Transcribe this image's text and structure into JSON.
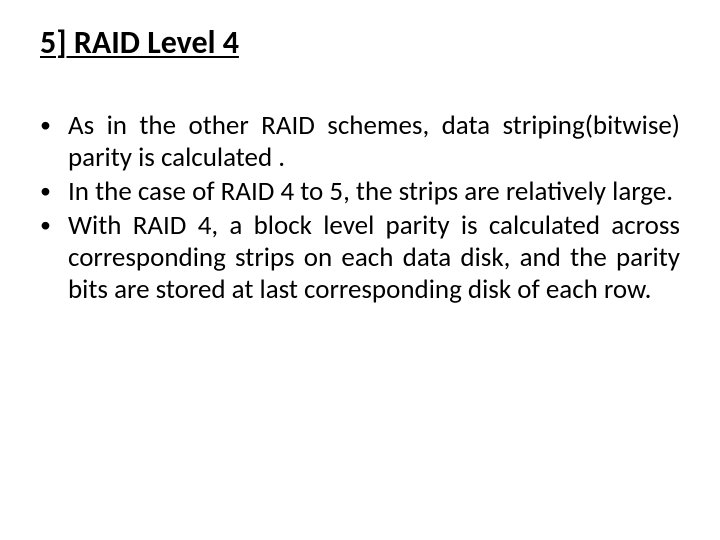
{
  "slide": {
    "title": "5] RAID Level 4",
    "bullet_marker": "•",
    "bullets": [
      "As in the other RAID schemes, data striping(bitwise) parity is calculated .",
      "In the case of RAID 4 to 5, the strips are relatively large.",
      "With RAID 4, a block level parity is calculated across corresponding strips on each data disk, and the parity bits are stored at last corresponding disk of each row."
    ]
  },
  "style": {
    "background_color": "#ffffff",
    "text_color": "#000000",
    "title_fontsize_pt": 32,
    "title_fontweight": 700,
    "title_underline": true,
    "body_fontsize_pt": 27,
    "body_justify": true,
    "font_family": "Calibri"
  }
}
